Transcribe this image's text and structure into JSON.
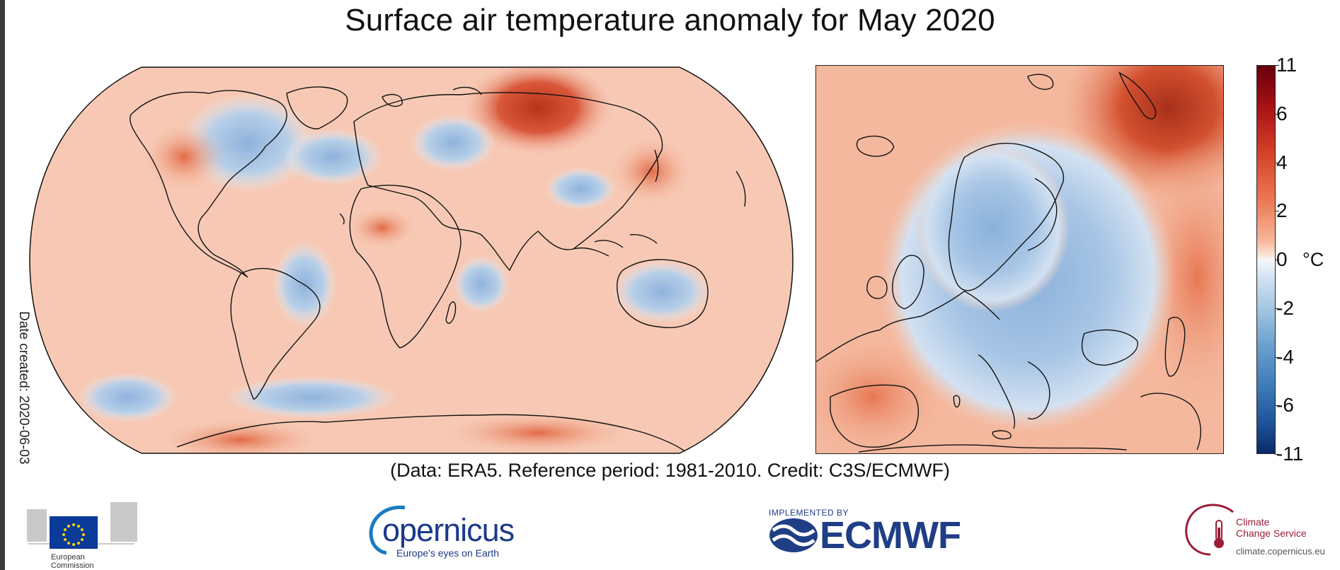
{
  "title": "Surface air temperature anomaly for May 2020",
  "date_created": "Date created: 2020-06-03",
  "caption": "(Data: ERA5.  Reference period: 1981-2010.  Credit: C3S/ECMWF)",
  "colorbar": {
    "unit": "°C",
    "ticks": [
      "11",
      "6",
      "4",
      "2",
      "0",
      "-2",
      "-4",
      "-6",
      "-11"
    ],
    "colors": [
      "#67000d",
      "#a50f15",
      "#d33f27",
      "#ec7a55",
      "#f7b59a",
      "#fbe5da",
      "#f7f7fb",
      "#d7e5f3",
      "#a8c8e4",
      "#6ba1cf",
      "#3a76b6",
      "#1b4f96",
      "#0a2a66"
    ]
  },
  "logos": {
    "european_commission": [
      "European",
      "Commission"
    ],
    "copernicus": {
      "name": "opernicus",
      "tagline": "Europe's eyes on Earth"
    },
    "ecmwf": {
      "implemented_by": "IMPLEMENTED BY",
      "name": "ECMWF"
    },
    "c3s": {
      "line1": "Climate",
      "line2": "Change Service",
      "url": "climate.copernicus.eu"
    }
  },
  "colors": {
    "warm": "#e8714d",
    "warm_light": "#f6c3ad",
    "cool": "#9dbde0",
    "cool_deep": "#7fa7d6",
    "hot": "#b8341a",
    "coastline": "#111111"
  }
}
